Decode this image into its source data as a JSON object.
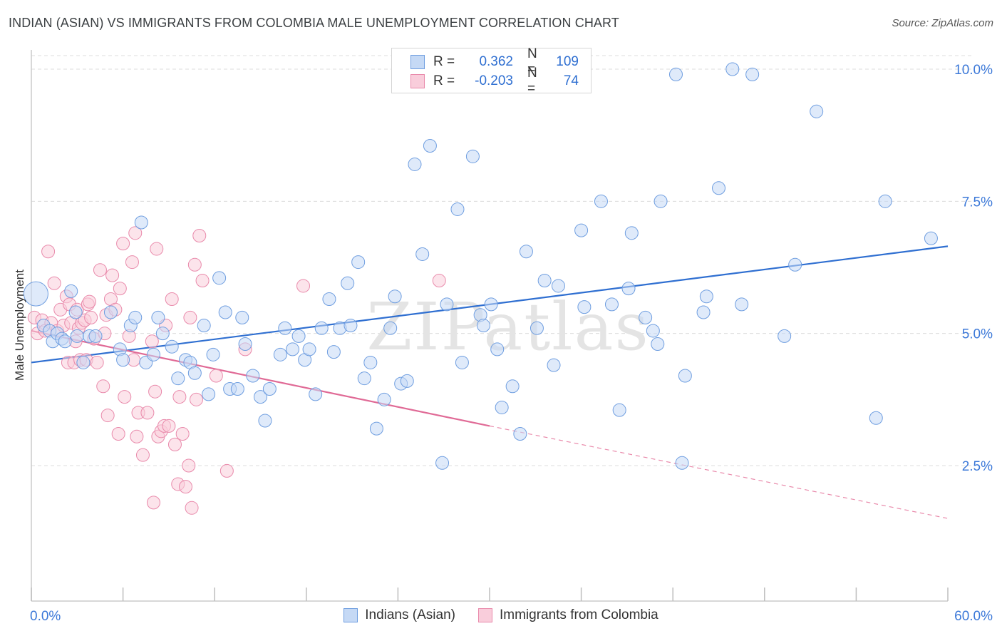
{
  "title": "INDIAN (ASIAN) VS IMMIGRANTS FROM COLOMBIA MALE UNEMPLOYMENT CORRELATION CHART",
  "source": "Source: ZipAtlas.com",
  "watermark": "ZIPatlas",
  "legend": {
    "rows": [
      {
        "r_label": "R =",
        "r_value": "0.362",
        "n_label": "N =",
        "n_value": "109",
        "color": "#6f9ee0",
        "fill": "#c5d9f5"
      },
      {
        "r_label": "R =",
        "r_value": "-0.203",
        "n_label": "N =",
        "n_value": "74",
        "color": "#e98aab",
        "fill": "#f9cddb"
      }
    ]
  },
  "bottom_legend": [
    {
      "label": "Indians (Asian)",
      "color": "#6f9ee0",
      "fill": "#c5d9f5"
    },
    {
      "label": "Immigrants from Colombia",
      "color": "#e98aab",
      "fill": "#f9cddb"
    }
  ],
  "chart_data": {
    "type": "scatter",
    "title": "INDIAN (ASIAN) VS IMMIGRANTS FROM COLOMBIA MALE UNEMPLOYMENT CORRELATION CHART",
    "xlabel": "",
    "ylabel": "Male Unemployment",
    "xlim": [
      0,
      60
    ],
    "ylim": [
      0,
      10.5
    ],
    "x_tick_labels": [
      "0.0%",
      "60.0%"
    ],
    "y_ticks": [
      2.5,
      5.0,
      7.5,
      10.0
    ],
    "y_tick_labels": [
      "2.5%",
      "5.0%",
      "7.5%",
      "10.0%"
    ],
    "grid": "horizontal dashed",
    "legend_position": "top-center",
    "series": [
      {
        "name": "Indians (Asian)",
        "color": "#6f9ee0",
        "fill": "#c5d9f5",
        "trend": {
          "x": [
            0,
            60
          ],
          "y": [
            4.45,
            6.65
          ]
        },
        "points": [
          [
            0.3,
            5.75
          ],
          [
            0.8,
            5.15
          ],
          [
            1.2,
            5.05
          ],
          [
            1.4,
            4.85
          ],
          [
            1.7,
            5.0
          ],
          [
            2.0,
            4.9
          ],
          [
            2.2,
            4.85
          ],
          [
            2.6,
            5.8
          ],
          [
            2.9,
            5.4
          ],
          [
            3.0,
            4.95
          ],
          [
            3.4,
            4.45
          ],
          [
            3.8,
            4.95
          ],
          [
            4.2,
            4.95
          ],
          [
            5.2,
            5.4
          ],
          [
            5.8,
            4.7
          ],
          [
            6.0,
            4.5
          ],
          [
            6.5,
            5.15
          ],
          [
            6.8,
            5.3
          ],
          [
            7.2,
            7.1
          ],
          [
            7.5,
            4.45
          ],
          [
            8.0,
            4.6
          ],
          [
            8.3,
            5.3
          ],
          [
            8.6,
            5.0
          ],
          [
            9.2,
            4.75
          ],
          [
            9.6,
            4.15
          ],
          [
            10.1,
            4.5
          ],
          [
            10.4,
            4.45
          ],
          [
            10.7,
            4.25
          ],
          [
            11.3,
            5.15
          ],
          [
            11.6,
            3.85
          ],
          [
            11.9,
            4.6
          ],
          [
            12.3,
            6.05
          ],
          [
            12.7,
            5.4
          ],
          [
            13.0,
            3.95
          ],
          [
            13.5,
            3.95
          ],
          [
            13.8,
            5.3
          ],
          [
            14.0,
            4.8
          ],
          [
            14.5,
            4.2
          ],
          [
            15.0,
            3.8
          ],
          [
            15.3,
            3.35
          ],
          [
            15.6,
            3.95
          ],
          [
            16.3,
            4.6
          ],
          [
            16.6,
            5.1
          ],
          [
            17.1,
            4.7
          ],
          [
            17.5,
            4.95
          ],
          [
            17.9,
            4.5
          ],
          [
            18.2,
            4.7
          ],
          [
            18.6,
            3.85
          ],
          [
            19.0,
            5.1
          ],
          [
            19.5,
            5.65
          ],
          [
            19.8,
            4.65
          ],
          [
            20.2,
            5.1
          ],
          [
            20.7,
            5.95
          ],
          [
            20.9,
            5.15
          ],
          [
            21.4,
            6.35
          ],
          [
            21.8,
            4.15
          ],
          [
            22.2,
            4.45
          ],
          [
            22.6,
            3.2
          ],
          [
            23.1,
            3.75
          ],
          [
            23.5,
            5.1
          ],
          [
            23.8,
            5.7
          ],
          [
            24.2,
            4.05
          ],
          [
            24.6,
            4.1
          ],
          [
            25.1,
            8.2
          ],
          [
            25.6,
            6.5
          ],
          [
            26.1,
            8.55
          ],
          [
            26.9,
            2.55
          ],
          [
            27.2,
            5.55
          ],
          [
            27.9,
            7.35
          ],
          [
            28.2,
            4.45
          ],
          [
            28.9,
            8.35
          ],
          [
            29.4,
            5.35
          ],
          [
            29.6,
            5.15
          ],
          [
            30.1,
            5.55
          ],
          [
            30.5,
            4.7
          ],
          [
            30.8,
            3.6
          ],
          [
            31.5,
            4.0
          ],
          [
            32.0,
            3.1
          ],
          [
            32.4,
            6.55
          ],
          [
            33.1,
            5.1
          ],
          [
            33.6,
            6.0
          ],
          [
            34.2,
            4.4
          ],
          [
            34.5,
            5.9
          ],
          [
            36.0,
            6.95
          ],
          [
            36.2,
            5.5
          ],
          [
            37.3,
            7.5
          ],
          [
            38.0,
            5.55
          ],
          [
            38.5,
            3.55
          ],
          [
            39.1,
            5.85
          ],
          [
            39.3,
            6.9
          ],
          [
            40.2,
            5.3
          ],
          [
            40.7,
            5.05
          ],
          [
            41.0,
            4.8
          ],
          [
            41.2,
            7.5
          ],
          [
            42.2,
            9.9
          ],
          [
            42.6,
            2.55
          ],
          [
            42.8,
            4.2
          ],
          [
            44.0,
            5.4
          ],
          [
            44.2,
            5.7
          ],
          [
            45.0,
            7.75
          ],
          [
            45.9,
            10.0
          ],
          [
            46.5,
            5.55
          ],
          [
            47.2,
            9.9
          ],
          [
            49.3,
            4.95
          ],
          [
            50.0,
            6.3
          ],
          [
            51.4,
            9.2
          ],
          [
            55.3,
            3.4
          ],
          [
            55.9,
            7.5
          ],
          [
            58.9,
            6.8
          ]
        ]
      },
      {
        "name": "Immigrants from Colombia",
        "color": "#e98aab",
        "fill": "#f9cddb",
        "trend": {
          "x": [
            0,
            30
          ],
          "y": [
            5.05,
            3.25
          ]
        },
        "trend_extension": {
          "x": [
            30,
            60
          ],
          "y": [
            3.25,
            1.5
          ]
        },
        "points": [
          [
            0.2,
            5.3
          ],
          [
            0.4,
            5.0
          ],
          [
            0.7,
            5.25
          ],
          [
            0.9,
            5.05
          ],
          [
            1.1,
            6.55
          ],
          [
            1.3,
            5.2
          ],
          [
            1.5,
            5.95
          ],
          [
            1.7,
            5.05
          ],
          [
            1.9,
            5.45
          ],
          [
            2.1,
            5.15
          ],
          [
            2.3,
            5.7
          ],
          [
            2.4,
            4.45
          ],
          [
            2.5,
            5.55
          ],
          [
            2.6,
            5.2
          ],
          [
            2.8,
            4.45
          ],
          [
            2.9,
            4.85
          ],
          [
            3.0,
            5.45
          ],
          [
            3.1,
            5.1
          ],
          [
            3.2,
            4.5
          ],
          [
            3.3,
            5.2
          ],
          [
            3.5,
            5.25
          ],
          [
            3.6,
            4.5
          ],
          [
            3.7,
            5.55
          ],
          [
            3.8,
            5.6
          ],
          [
            3.9,
            5.3
          ],
          [
            4.1,
            4.9
          ],
          [
            4.3,
            4.45
          ],
          [
            4.5,
            6.2
          ],
          [
            4.7,
            4.0
          ],
          [
            4.9,
            5.35
          ],
          [
            5.0,
            3.45
          ],
          [
            5.2,
            5.65
          ],
          [
            5.3,
            6.1
          ],
          [
            5.5,
            5.45
          ],
          [
            5.7,
            3.1
          ],
          [
            5.8,
            5.85
          ],
          [
            6.0,
            6.7
          ],
          [
            6.1,
            3.8
          ],
          [
            6.4,
            4.95
          ],
          [
            6.6,
            6.35
          ],
          [
            6.7,
            4.5
          ],
          [
            6.8,
            6.9
          ],
          [
            6.9,
            3.05
          ],
          [
            7.0,
            3.5
          ],
          [
            7.3,
            2.7
          ],
          [
            7.6,
            3.5
          ],
          [
            7.9,
            4.85
          ],
          [
            8.0,
            1.8
          ],
          [
            8.1,
            3.9
          ],
          [
            8.2,
            6.6
          ],
          [
            8.3,
            3.05
          ],
          [
            8.5,
            3.15
          ],
          [
            8.7,
            3.25
          ],
          [
            8.8,
            5.15
          ],
          [
            9.0,
            3.25
          ],
          [
            9.2,
            5.65
          ],
          [
            9.4,
            2.9
          ],
          [
            9.6,
            2.15
          ],
          [
            9.7,
            3.8
          ],
          [
            9.9,
            3.1
          ],
          [
            10.1,
            2.1
          ],
          [
            10.3,
            2.5
          ],
          [
            10.4,
            5.3
          ],
          [
            10.5,
            1.7
          ],
          [
            10.7,
            6.3
          ],
          [
            10.8,
            3.75
          ],
          [
            11.0,
            6.85
          ],
          [
            11.2,
            6.0
          ],
          [
            12.1,
            4.2
          ],
          [
            12.8,
            2.4
          ],
          [
            14.0,
            4.7
          ],
          [
            17.8,
            5.9
          ],
          [
            26.7,
            6.0
          ],
          [
            4.8,
            5.0
          ]
        ]
      }
    ]
  }
}
